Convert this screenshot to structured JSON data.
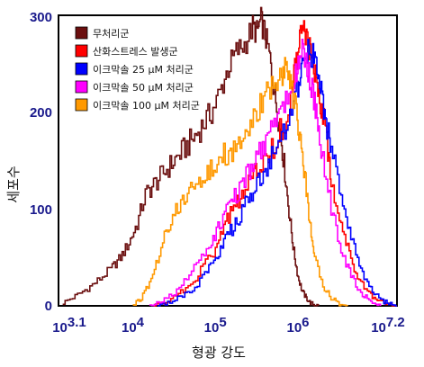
{
  "chart_data": {
    "type": "line",
    "xlabel": "형광 강도",
    "ylabel": "세포수",
    "x_scale": "log",
    "xlim": [
      3.1,
      7.2
    ],
    "ylim": [
      0,
      300
    ],
    "y_ticks": [
      "0",
      "100",
      "200",
      "300"
    ],
    "x_ticks": [
      {
        "base": "10",
        "exp": "3.1",
        "pos": 3.1
      },
      {
        "base": "10",
        "exp": "4",
        "pos": 4
      },
      {
        "base": "10",
        "exp": "5",
        "pos": 5
      },
      {
        "base": "10",
        "exp": "6",
        "pos": 6
      },
      {
        "base": "10",
        "exp": "7.2",
        "pos": 7.2
      }
    ],
    "legend_position": "top-left",
    "series": [
      {
        "name": "무처리군",
        "color": "#6b0f0f",
        "x": [
          3.15,
          3.3,
          3.45,
          3.6,
          3.75,
          3.85,
          3.95,
          4.05,
          4.15,
          4.25,
          4.35,
          4.45,
          4.55,
          4.65,
          4.75,
          4.85,
          4.95,
          5.05,
          5.15,
          5.25,
          5.35,
          5.45,
          5.5,
          5.55,
          5.6,
          5.65,
          5.7,
          5.75,
          5.8,
          5.85,
          5.9,
          5.95,
          6.0,
          6.05,
          6.1,
          6.15,
          6.2,
          6.25
        ],
        "y": [
          3,
          10,
          18,
          28,
          40,
          50,
          65,
          85,
          115,
          125,
          135,
          145,
          155,
          165,
          175,
          188,
          200,
          220,
          245,
          262,
          270,
          288,
          282,
          295,
          280,
          260,
          230,
          200,
          170,
          130,
          90,
          55,
          30,
          15,
          8,
          3,
          1,
          0
        ]
      },
      {
        "name": "산화스트레스 발생군",
        "color": "#ff0000",
        "x": [
          4.25,
          4.4,
          4.55,
          4.7,
          4.85,
          5.0,
          5.1,
          5.2,
          5.3,
          5.4,
          5.5,
          5.6,
          5.7,
          5.8,
          5.9,
          5.95,
          6.0,
          6.05,
          6.1,
          6.15,
          6.2,
          6.25,
          6.3,
          6.35,
          6.4,
          6.5,
          6.6,
          6.7,
          6.8,
          6.9,
          7.0,
          7.1,
          7.2
        ],
        "y": [
          0,
          5,
          12,
          22,
          40,
          60,
          80,
          100,
          110,
          125,
          140,
          150,
          165,
          185,
          200,
          240,
          260,
          290,
          275,
          260,
          240,
          220,
          200,
          170,
          130,
          90,
          60,
          35,
          20,
          10,
          5,
          2,
          0
        ]
      },
      {
        "name": "이크막솔 25 μM 처리군",
        "color": "#0000ff",
        "x": [
          4.3,
          4.45,
          4.6,
          4.75,
          4.9,
          5.0,
          5.1,
          5.2,
          5.3,
          5.4,
          5.5,
          5.6,
          5.7,
          5.8,
          5.9,
          6.0,
          6.05,
          6.1,
          6.15,
          6.2,
          6.25,
          6.3,
          6.35,
          6.4,
          6.5,
          6.6,
          6.7,
          6.8,
          6.9,
          7.0,
          7.1,
          7.2
        ],
        "y": [
          0,
          4,
          10,
          20,
          35,
          50,
          65,
          80,
          95,
          110,
          125,
          140,
          155,
          170,
          190,
          225,
          245,
          265,
          260,
          255,
          235,
          210,
          185,
          160,
          120,
          85,
          55,
          30,
          15,
          6,
          2,
          0
        ]
      },
      {
        "name": "이크막솔 50 μM 처리군",
        "color": "#ff00ff",
        "x": [
          4.2,
          4.35,
          4.5,
          4.65,
          4.8,
          4.95,
          5.05,
          5.15,
          5.25,
          5.35,
          5.45,
          5.55,
          5.65,
          5.75,
          5.85,
          5.95,
          6.0,
          6.05,
          6.1,
          6.15,
          6.2,
          6.25,
          6.3,
          6.4,
          6.5,
          6.6,
          6.7,
          6.8,
          6.9,
          7.0
        ],
        "y": [
          0,
          6,
          14,
          28,
          45,
          65,
          85,
          100,
          115,
          130,
          145,
          160,
          180,
          200,
          215,
          230,
          250,
          265,
          250,
          230,
          210,
          180,
          150,
          100,
          65,
          40,
          22,
          10,
          4,
          0
        ]
      },
      {
        "name": "이크막솔 100 μM 처리군",
        "color": "#ff9900",
        "x": [
          4.0,
          4.1,
          4.2,
          4.3,
          4.4,
          4.5,
          4.6,
          4.7,
          4.8,
          4.9,
          5.0,
          5.1,
          5.2,
          5.3,
          5.4,
          5.5,
          5.6,
          5.7,
          5.8,
          5.85,
          5.9,
          5.95,
          6.0,
          6.05,
          6.1,
          6.15,
          6.2,
          6.3,
          6.4,
          6.5,
          6.6
        ],
        "y": [
          0,
          8,
          25,
          50,
          80,
          95,
          110,
          120,
          130,
          140,
          150,
          155,
          160,
          170,
          180,
          200,
          215,
          230,
          235,
          245,
          230,
          215,
          190,
          160,
          120,
          80,
          50,
          20,
          8,
          2,
          0
        ]
      }
    ]
  }
}
